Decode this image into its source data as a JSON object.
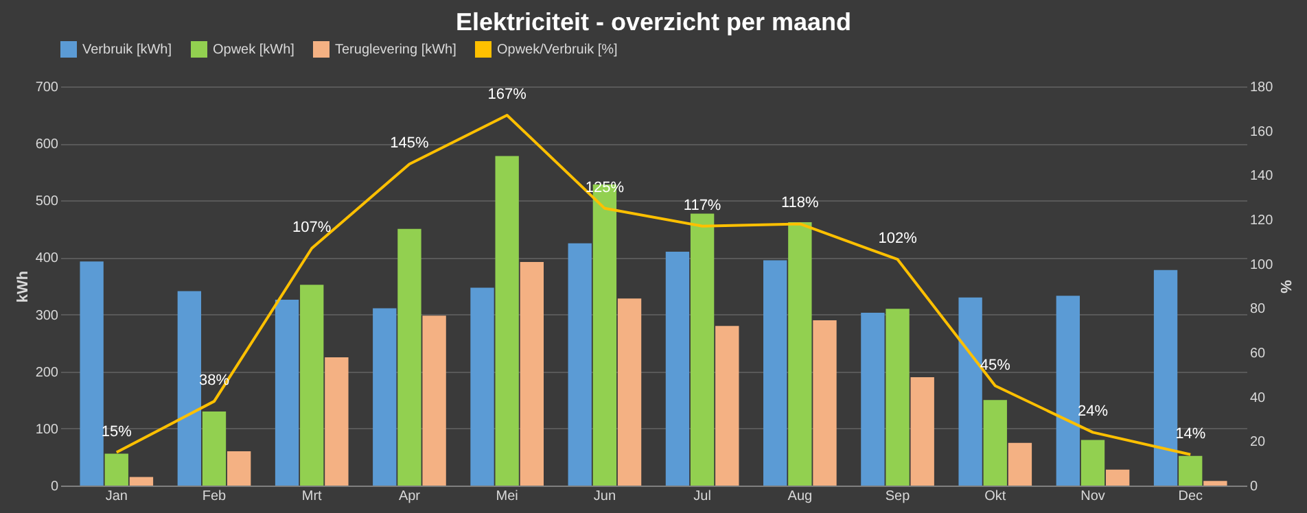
{
  "chart_data": {
    "type": "bar",
    "title": "Elektriciteit  - overzicht per maand",
    "ylabel": "kWh",
    "y2label": "%",
    "categories": [
      "Jan",
      "Feb",
      "Mrt",
      "Apr",
      "Mei",
      "Jun",
      "Jul",
      "Aug",
      "Sep",
      "Okt",
      "Nov",
      "Dec"
    ],
    "series": [
      {
        "name": "Verbruik [kWh]",
        "color": "#5b9bd5",
        "values": [
          393,
          341,
          326,
          311,
          347,
          425,
          410,
          395,
          303,
          330,
          333,
          378
        ]
      },
      {
        "name": "Opwek [kWh]",
        "color": "#92d050",
        "values": [
          56,
          130,
          352,
          450,
          578,
          528,
          477,
          462,
          310,
          150,
          80,
          52
        ]
      },
      {
        "name": "Teruglevering [kWh]",
        "color": "#f4b183",
        "values": [
          15,
          60,
          225,
          298,
          392,
          328,
          280,
          290,
          190,
          75,
          28,
          8
        ]
      },
      {
        "name": "Opwek/Verbruik [%]",
        "type": "line",
        "axis": "y2",
        "color": "#ffc000",
        "values": [
          15,
          38,
          107,
          145,
          167,
          125,
          117,
          118,
          102,
          45,
          24,
          14
        ],
        "value_labels": [
          "15%",
          "38%",
          "107%",
          "145%",
          "167%",
          "125%",
          "117%",
          "118%",
          "102%",
          "45%",
          "24%",
          "14%"
        ]
      }
    ],
    "ylim": [
      0,
      700
    ],
    "yticks": [
      0,
      100,
      200,
      300,
      400,
      500,
      600,
      700
    ],
    "y2lim": [
      0,
      180
    ],
    "y2ticks": [
      0,
      20,
      40,
      60,
      80,
      100,
      120,
      140,
      160,
      180
    ],
    "grid": "y",
    "legend": "top",
    "marker": "none",
    "line_style": "solid"
  }
}
